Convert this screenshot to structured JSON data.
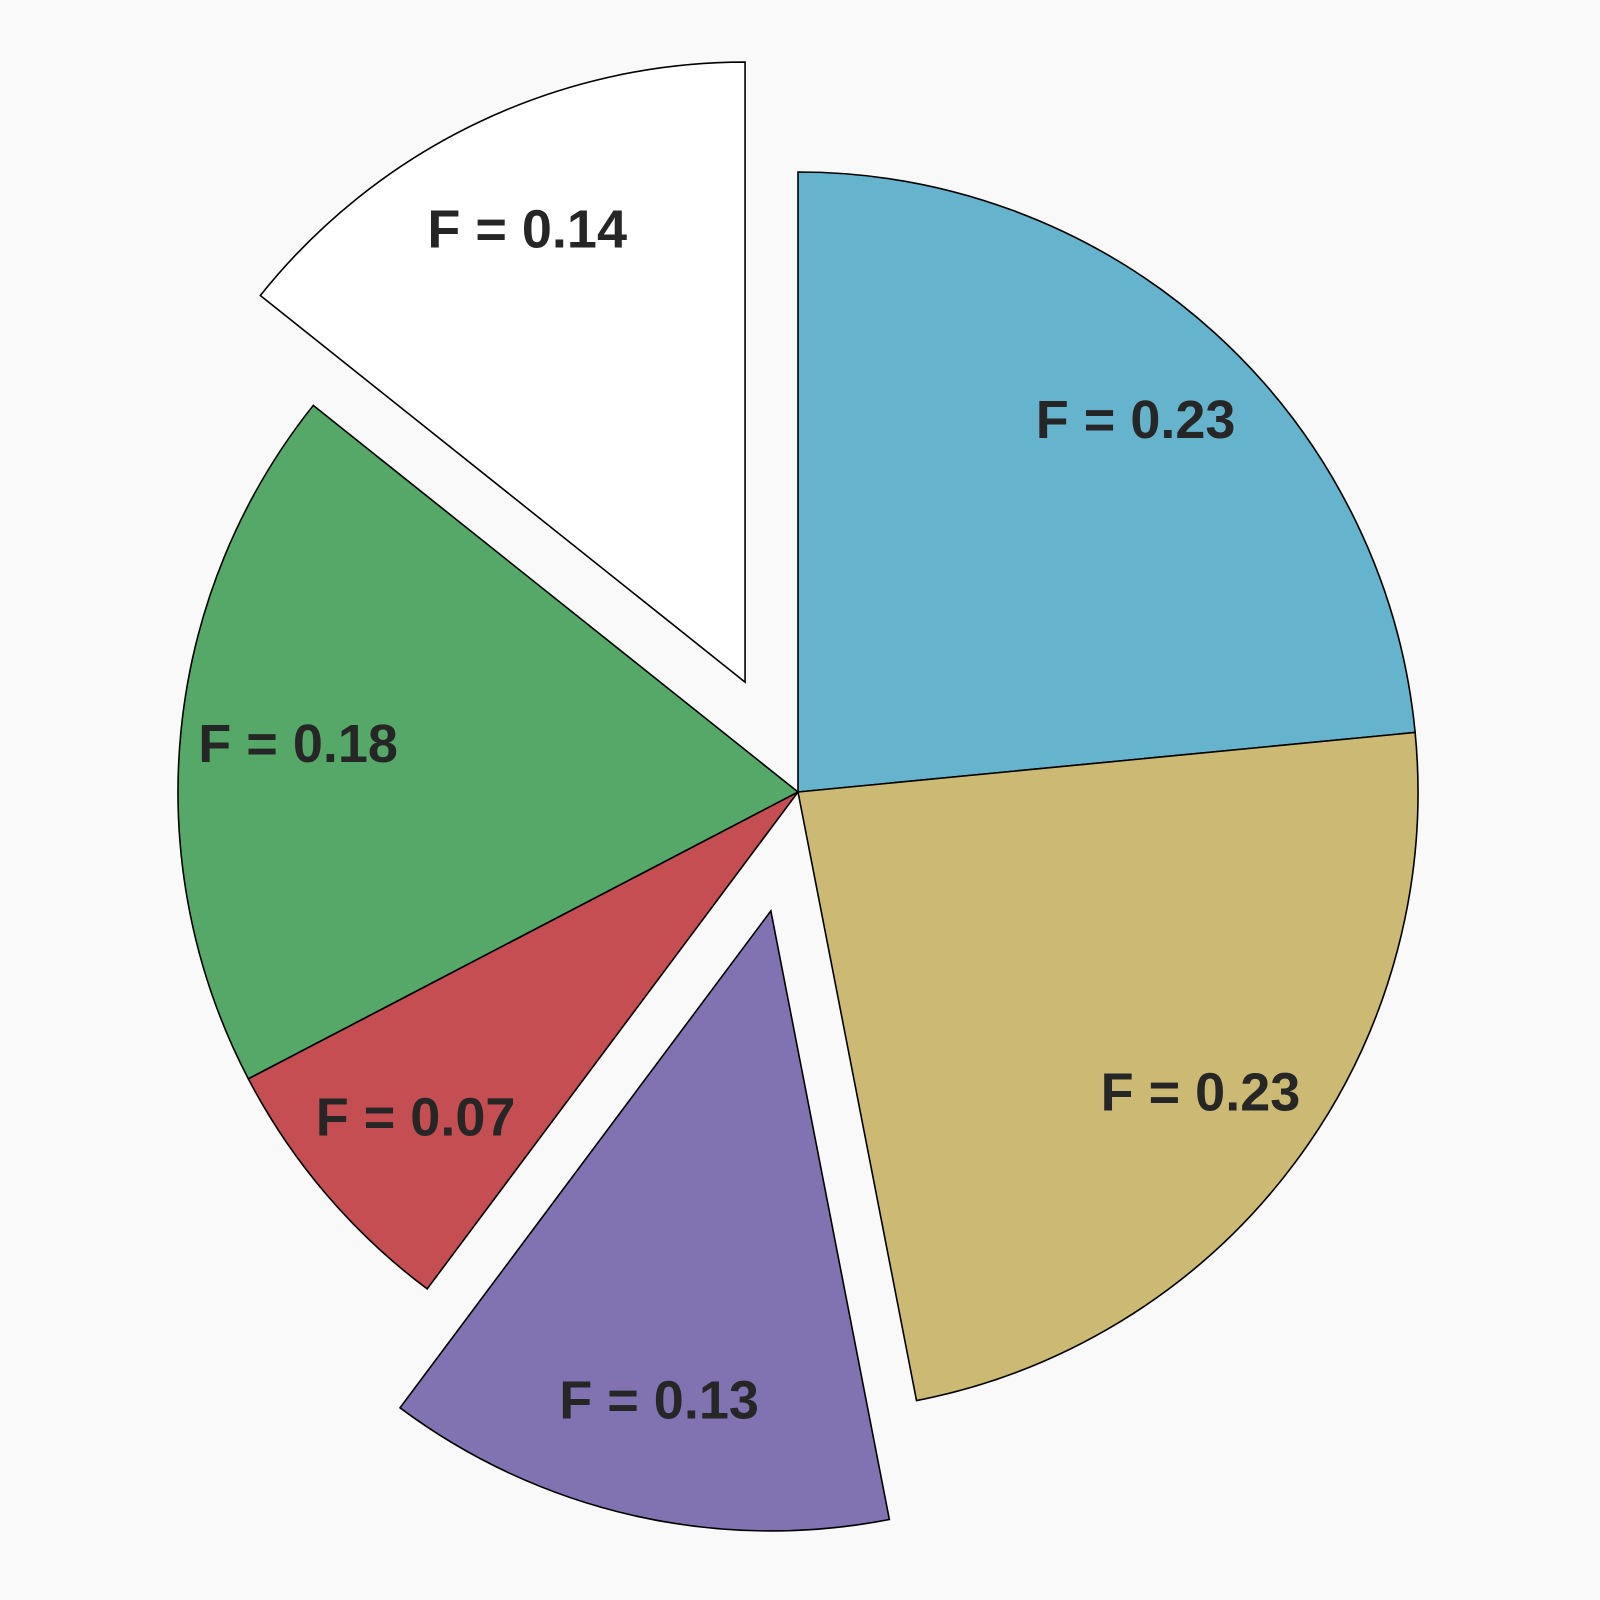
{
  "chart_data": {
    "type": "pie",
    "title": "",
    "direction": "clockwise",
    "start": "top",
    "slices": [
      {
        "label": "F = 0.23",
        "value": 0.23,
        "color": "#66b3cd",
        "exploded": false
      },
      {
        "label": "F = 0.23",
        "value": 0.23,
        "color": "#ccb974",
        "exploded": false
      },
      {
        "label": "F = 0.13",
        "value": 0.13,
        "color": "#8172b2",
        "exploded": true
      },
      {
        "label": "F = 0.07",
        "value": 0.07,
        "color": "#c44e52",
        "exploded": false
      },
      {
        "label": "F = 0.18",
        "value": 0.18,
        "color": "#55a868",
        "exploded": false
      },
      {
        "label": "F = 0.14",
        "value": 0.14,
        "color": "#ffffff",
        "exploded": true
      }
    ]
  }
}
